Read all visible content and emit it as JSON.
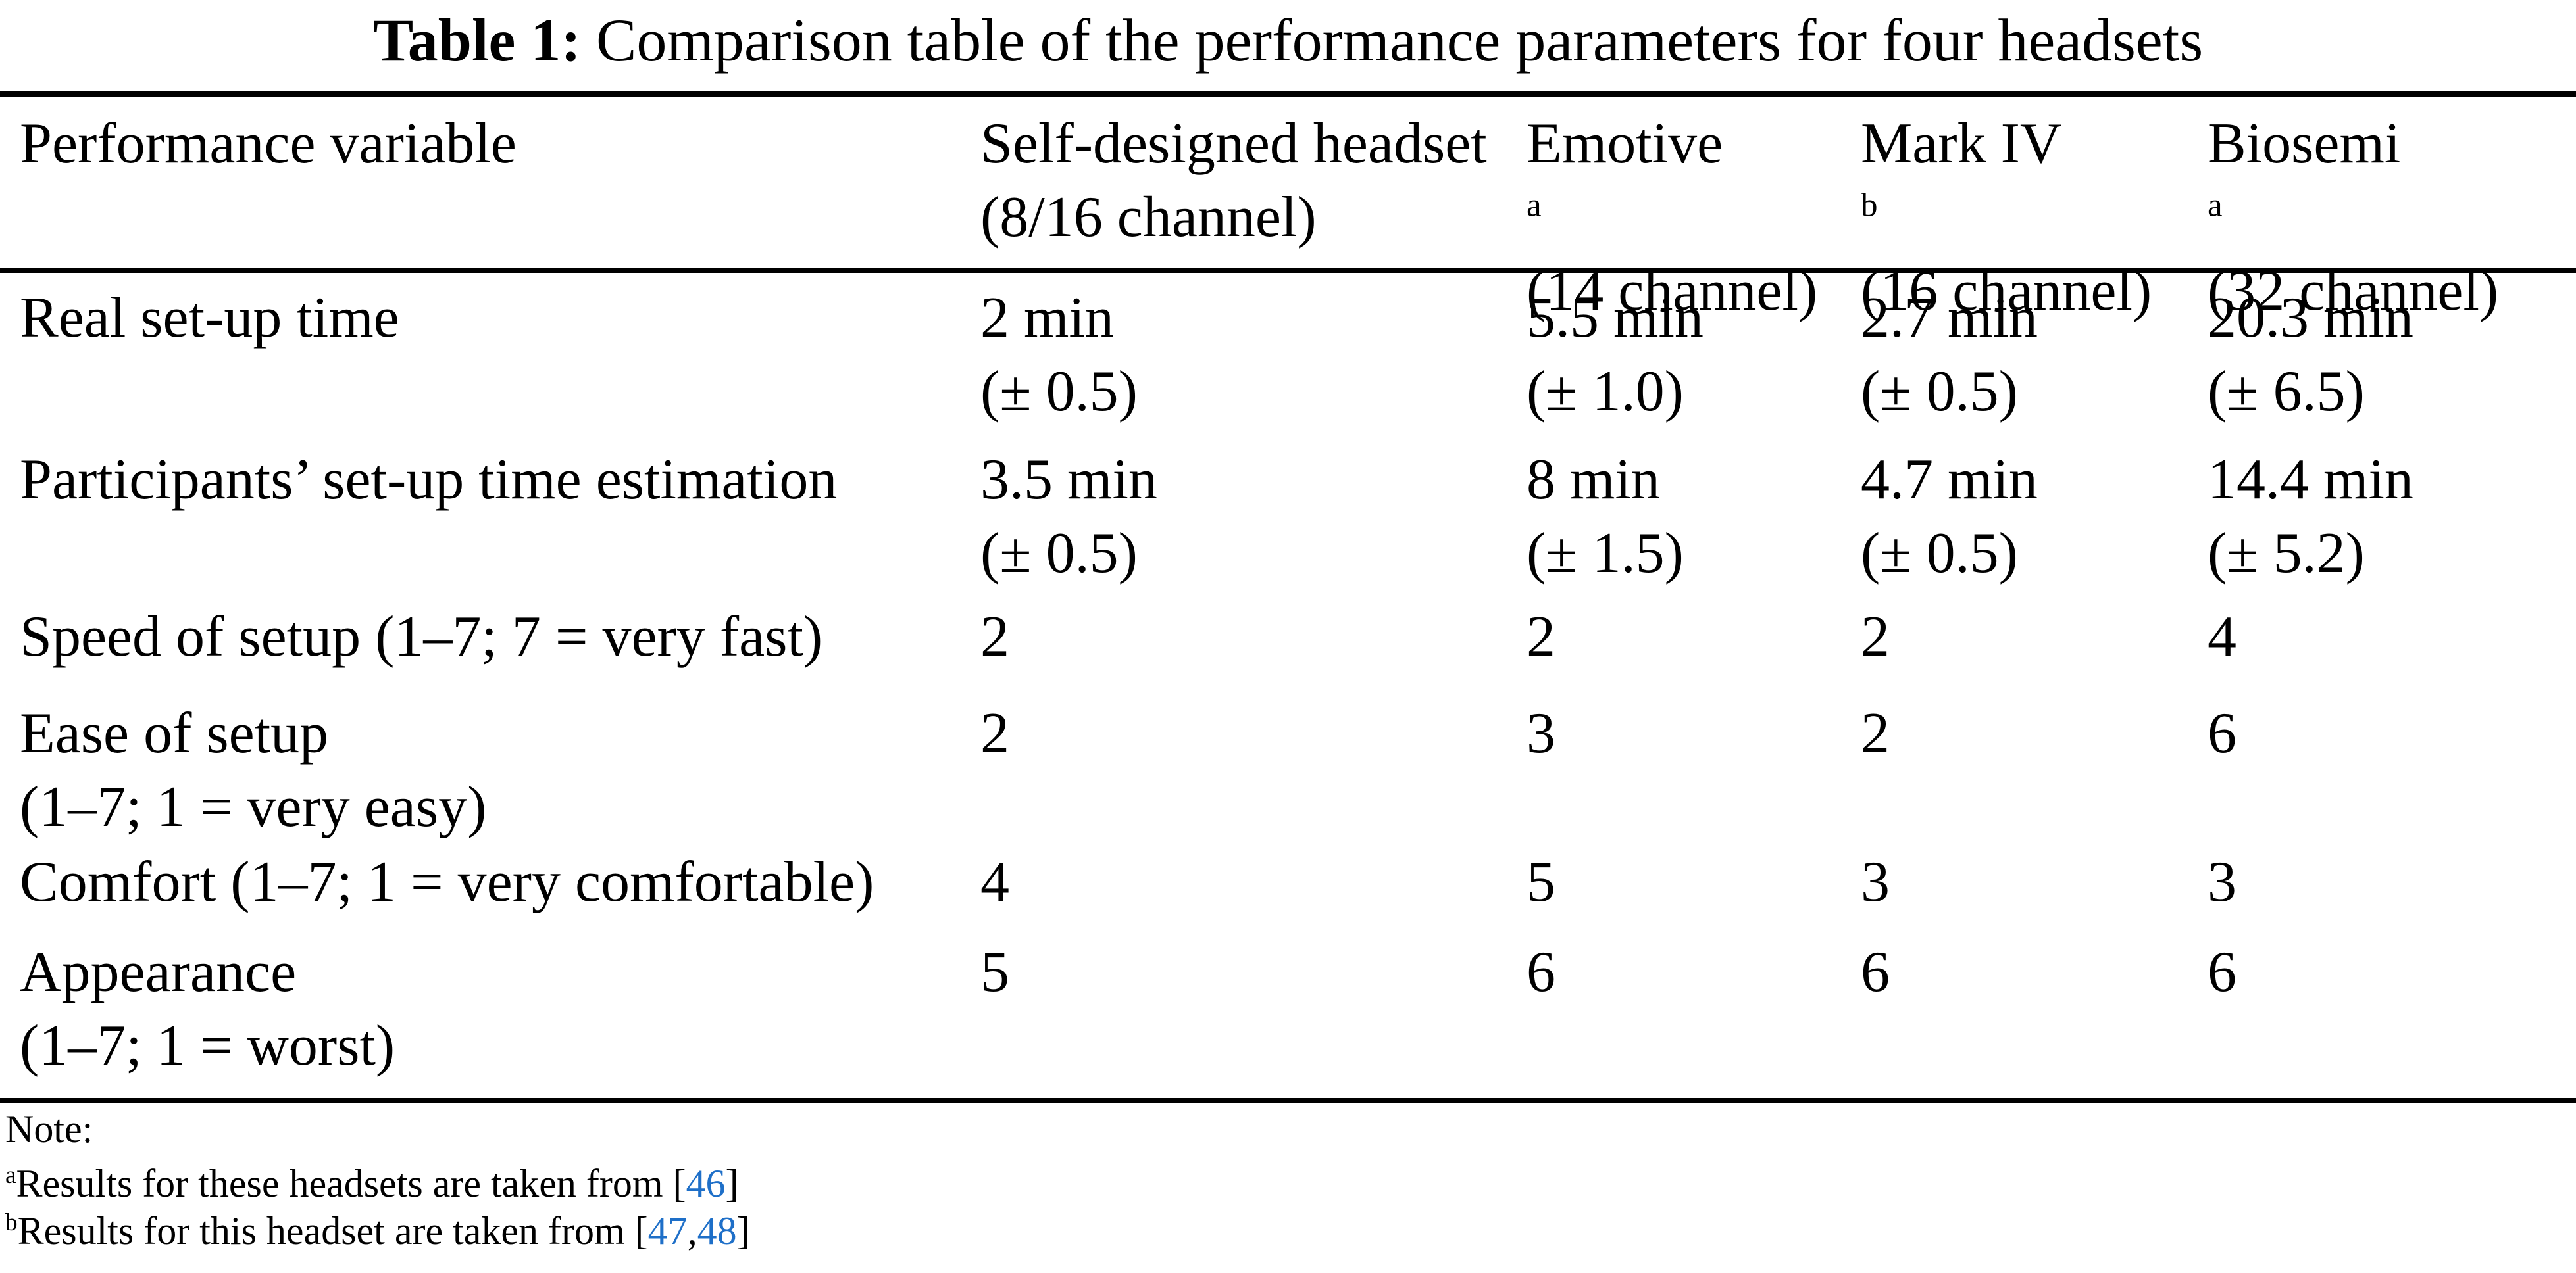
{
  "page": {
    "background_color": "#ffffff",
    "text_color": "#000000",
    "link_color": "#1E6FC8"
  },
  "caption": {
    "prefix": "Table 1:",
    "text": " Comparison table of the performance parameters for four headsets"
  },
  "header": {
    "col0": {
      "l1": "Performance variable",
      "sup": "",
      "l2": ""
    },
    "col1": {
      "l1": "Self-designed headset",
      "sup": "",
      "l2": "(8/16 channel)"
    },
    "col2": {
      "l1": "Emotive",
      "sup": "a",
      "l2": "(14 channel)"
    },
    "col3": {
      "l1": "Mark IV",
      "sup": "b",
      "l2": "(16 channel)"
    },
    "col4": {
      "l1": "Biosemi",
      "sup": "a",
      "l2": "(32 channel)"
    }
  },
  "rows": [
    {
      "l1": "Real set-up time",
      "l2": "",
      "c1": {
        "v1": "2 min",
        "v2": "(± 0.5)"
      },
      "c2": {
        "v1": "5.5 min",
        "v2": "(± 1.0)"
      },
      "c3": {
        "v1": "2.7 min",
        "v2": "(± 0.5)"
      },
      "c4": {
        "v1": "20.3 min",
        "v2": "(± 6.5)"
      }
    },
    {
      "l1": "Participants’ set-up time estimation",
      "l2": "",
      "c1": {
        "v1": "3.5 min",
        "v2": "(± 0.5)"
      },
      "c2": {
        "v1": "8 min",
        "v2": "(± 1.5)"
      },
      "c3": {
        "v1": "4.7 min",
        "v2": "(± 0.5)"
      },
      "c4": {
        "v1": "14.4 min",
        "v2": "(± 5.2)"
      }
    },
    {
      "l1": "Speed of setup (1–7; 7 = very fast)",
      "l2": "",
      "c1": {
        "v1": "2",
        "v2": ""
      },
      "c2": {
        "v1": "2",
        "v2": ""
      },
      "c3": {
        "v1": "2",
        "v2": ""
      },
      "c4": {
        "v1": "4",
        "v2": ""
      }
    },
    {
      "l1": "Ease of setup",
      "l2": "(1–7; 1 = very easy)",
      "c1": {
        "v1": "2",
        "v2": ""
      },
      "c2": {
        "v1": "3",
        "v2": ""
      },
      "c3": {
        "v1": "2",
        "v2": ""
      },
      "c4": {
        "v1": "6",
        "v2": ""
      }
    },
    {
      "l1": "Comfort (1–7; 1 = very comfortable)",
      "l2": "",
      "c1": {
        "v1": "4",
        "v2": ""
      },
      "c2": {
        "v1": "5",
        "v2": ""
      },
      "c3": {
        "v1": "3",
        "v2": ""
      },
      "c4": {
        "v1": "3",
        "v2": ""
      }
    },
    {
      "l1": "Appearance",
      "l2": "(1–7; 1 = worst)",
      "c1": {
        "v1": "5",
        "v2": ""
      },
      "c2": {
        "v1": "6",
        "v2": ""
      },
      "c3": {
        "v1": "6",
        "v2": ""
      },
      "c4": {
        "v1": "6",
        "v2": ""
      }
    }
  ],
  "notes": {
    "heading": "Note:",
    "a": {
      "sup": "a",
      "text": "Results for these headsets are taken from ",
      "open": "[",
      "ref1": "46",
      "sep": "",
      "ref2": "",
      "close": "]"
    },
    "b": {
      "sup": "b",
      "text": "Results for this headset are taken from ",
      "open": "[",
      "ref1": "47",
      "sep": ",",
      "ref2": "48",
      "close": "]"
    }
  }
}
